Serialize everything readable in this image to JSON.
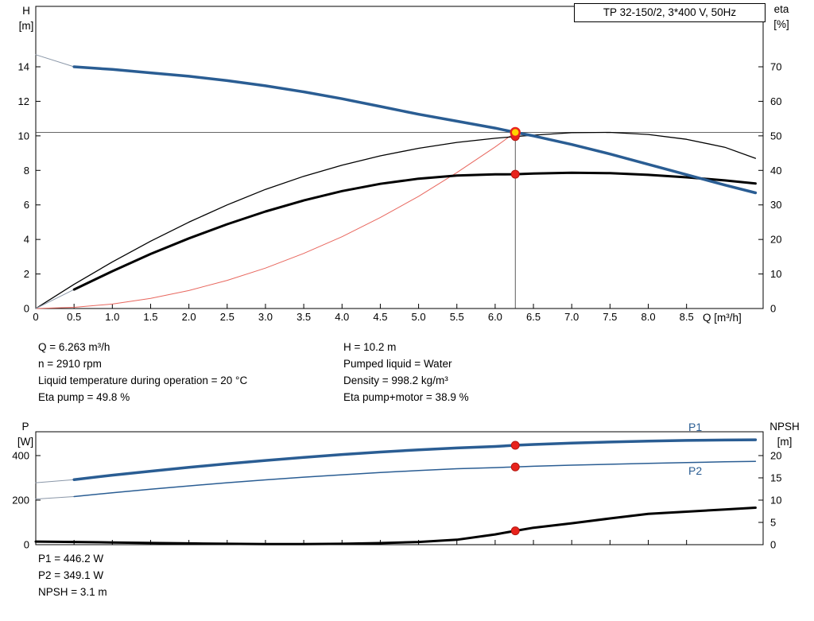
{
  "title_box": "TP 32-150/2, 3*400 V, 50Hz",
  "colors": {
    "curve_blue": "#2a5d93",
    "curve_black": "#000000",
    "system_red": "#e8675e",
    "marker_red": "#e8231c",
    "marker_yellow": "#ffd400",
    "lead_gray": "#8a97a8",
    "ref_line": "#333333"
  },
  "results": {
    "left": [
      "Q = 6.263 m³/h",
      "n = 2910 rpm",
      "Liquid temperature during operation = 20 °C",
      "Eta pump = 49.8 %"
    ],
    "right": [
      "H = 10.2 m",
      "Pumped liquid = Water",
      "Density = 998.2 kg/m³",
      "Eta pump+motor = 38.9 %"
    ],
    "bottom": [
      "P1 = 446.2 W",
      "P2 = 349.1 W",
      "NPSH = 3.1 m"
    ]
  },
  "chart_data": [
    {
      "type": "line",
      "name": "hq-eta-chart",
      "x_axis": {
        "label": "Q [m³/h]",
        "min": 0,
        "max": 9.5,
        "tick_values": [
          0,
          0.5,
          1,
          1.5,
          2,
          2.5,
          3,
          3.5,
          4,
          4.5,
          5,
          5.5,
          6,
          6.5,
          7,
          7.5,
          8,
          8.5
        ],
        "tick_labels": [
          "0",
          "0.5",
          "1.0",
          "1.5",
          "2.0",
          "2.5",
          "3.0",
          "3.5",
          "4.0",
          "4.5",
          "5.0",
          "5.5",
          "6.0",
          "6.5",
          "7.0",
          "7.5",
          "8.0",
          "8.5"
        ]
      },
      "y_left": {
        "label_top": "H",
        "label_unit": "[m]",
        "min": 0,
        "max": 17.5,
        "tick_values": [
          0,
          2,
          4,
          6,
          8,
          10,
          12,
          14
        ],
        "tick_labels": [
          "0",
          "2",
          "4",
          "6",
          "8",
          "10",
          "12",
          "14"
        ]
      },
      "y_right": {
        "label_top": "eta",
        "label_unit": "[%]",
        "min": 0,
        "max": 87.5,
        "tick_values": [
          0,
          10,
          20,
          30,
          40,
          50,
          60,
          70
        ],
        "tick_labels": [
          "0",
          "10",
          "20",
          "30",
          "40",
          "50",
          "60",
          "70"
        ]
      },
      "ref_lines": [
        {
          "type": "h",
          "y": 10.2,
          "axis": "left",
          "color": "#333333",
          "width": 0.8
        },
        {
          "type": "v",
          "x": 6.263,
          "y_top": 10.2,
          "axis": "left",
          "color": "#333333",
          "width": 0.8
        }
      ],
      "series": [
        {
          "name": "system-curve",
          "axis": "left",
          "color": "#e8675e",
          "width": 1,
          "points": [
            [
              0,
              0
            ],
            [
              0.5,
              0.07
            ],
            [
              1,
              0.26
            ],
            [
              1.5,
              0.59
            ],
            [
              2,
              1.04
            ],
            [
              2.5,
              1.63
            ],
            [
              3,
              2.34
            ],
            [
              3.5,
              3.19
            ],
            [
              4,
              4.16
            ],
            [
              4.5,
              5.27
            ],
            [
              5,
              6.5
            ],
            [
              5.5,
              7.87
            ],
            [
              6,
              9.36
            ],
            [
              6.263,
              10.2
            ]
          ]
        },
        {
          "name": "eta-pump-curve",
          "axis": "right",
          "color": "#000000",
          "width": 1.3,
          "points": [
            [
              0,
              0
            ],
            [
              0.5,
              7
            ],
            [
              1,
              13.5
            ],
            [
              1.5,
              19.5
            ],
            [
              2,
              25
            ],
            [
              2.5,
              30
            ],
            [
              3,
              34.5
            ],
            [
              3.5,
              38.3
            ],
            [
              4,
              41.5
            ],
            [
              4.5,
              44.2
            ],
            [
              5,
              46.4
            ],
            [
              5.5,
              48.1
            ],
            [
              6,
              49.3
            ],
            [
              6.263,
              49.8
            ],
            [
              6.5,
              50.2
            ],
            [
              7,
              50.9
            ],
            [
              7.5,
              51
            ],
            [
              8,
              50.4
            ],
            [
              8.5,
              49
            ],
            [
              9,
              46.7
            ],
            [
              9.4,
              43.5
            ]
          ]
        },
        {
          "name": "eta-pump-motor-leadin",
          "axis": "right",
          "color": "#8a97a8",
          "width": 1,
          "points": [
            [
              0,
              0
            ],
            [
              0.5,
              5.5
            ]
          ]
        },
        {
          "name": "eta-pump-motor-curve",
          "axis": "right",
          "color": "#000000",
          "width": 3,
          "points": [
            [
              0.5,
              5.5
            ],
            [
              1,
              10.8
            ],
            [
              1.5,
              15.8
            ],
            [
              2,
              20.3
            ],
            [
              2.5,
              24.4
            ],
            [
              3,
              28.1
            ],
            [
              3.5,
              31.3
            ],
            [
              4,
              34
            ],
            [
              4.5,
              36.1
            ],
            [
              5,
              37.6
            ],
            [
              5.5,
              38.5
            ],
            [
              6,
              38.85
            ],
            [
              6.263,
              38.9
            ],
            [
              6.5,
              39.1
            ],
            [
              7,
              39.3
            ],
            [
              7.5,
              39.2
            ],
            [
              8,
              38.7
            ],
            [
              8.5,
              38
            ],
            [
              9,
              37.1
            ],
            [
              9.4,
              36.2
            ]
          ]
        },
        {
          "name": "h-curve-leadin",
          "axis": "left",
          "color": "#8a97a8",
          "width": 1,
          "points": [
            [
              0,
              14.7
            ],
            [
              0.5,
              14
            ]
          ]
        },
        {
          "name": "h-curve",
          "axis": "left",
          "color": "#2a5d93",
          "width": 3.5,
          "points": [
            [
              0.5,
              14
            ],
            [
              1,
              13.85
            ],
            [
              1.5,
              13.65
            ],
            [
              2,
              13.45
            ],
            [
              2.5,
              13.2
            ],
            [
              3,
              12.9
            ],
            [
              3.5,
              12.55
            ],
            [
              4,
              12.15
            ],
            [
              4.5,
              11.7
            ],
            [
              5,
              11.25
            ],
            [
              5.5,
              10.85
            ],
            [
              6,
              10.45
            ],
            [
              6.263,
              10.2
            ],
            [
              6.5,
              10
            ],
            [
              7,
              9.5
            ],
            [
              7.5,
              8.95
            ],
            [
              8,
              8.35
            ],
            [
              8.5,
              7.75
            ],
            [
              9,
              7.15
            ],
            [
              9.4,
              6.7
            ]
          ]
        }
      ],
      "markers": [
        {
          "name": "duty-point-eta-pump",
          "x": 6.263,
          "y": 49.8,
          "axis": "right",
          "r": 5,
          "fill": "#e8231c",
          "stroke": "#b51812",
          "stroke_w": 1
        },
        {
          "name": "duty-point-eta-pump-motor",
          "x": 6.263,
          "y": 38.9,
          "axis": "right",
          "r": 5,
          "fill": "#e8231c",
          "stroke": "#b51812",
          "stroke_w": 1
        },
        {
          "name": "duty-point",
          "x": 6.263,
          "y": 10.2,
          "axis": "left",
          "r": 5.5,
          "fill": "#ffd400",
          "stroke": "#e8231c",
          "stroke_w": 2.5
        }
      ]
    },
    {
      "type": "line",
      "name": "power-npsh-chart",
      "x_axis": {
        "label": "",
        "min": 0,
        "max": 9.5,
        "tick_values": [
          0,
          0.5,
          1,
          1.5,
          2,
          2.5,
          3,
          3.5,
          4,
          4.5,
          5,
          5.5,
          6,
          6.5,
          7,
          7.5,
          8,
          8.5
        ],
        "tick_labels": []
      },
      "y_left": {
        "label_top": "P",
        "label_unit": "[W]",
        "min": 0,
        "max": 507,
        "tick_values": [
          0,
          200,
          400
        ],
        "tick_labels": [
          "0",
          "200",
          "400"
        ]
      },
      "y_right": {
        "label_top": "NPSH",
        "label_unit": "[m]",
        "min": 0,
        "max": 25.35,
        "tick_values": [
          0,
          5,
          10,
          15,
          20
        ],
        "tick_labels": [
          "0",
          "5",
          "10",
          "15",
          "20"
        ]
      },
      "ref_lines": [],
      "series_labels": [
        {
          "text": "P1"
        },
        {
          "text": "P2"
        }
      ],
      "series": [
        {
          "name": "p1-curve-leadin",
          "axis": "left",
          "color": "#8a97a8",
          "width": 1,
          "points": [
            [
              0,
              278
            ],
            [
              0.5,
              292
            ]
          ]
        },
        {
          "name": "p2-curve-leadin",
          "axis": "left",
          "color": "#8a97a8",
          "width": 1,
          "points": [
            [
              0,
              205
            ],
            [
              0.5,
              216
            ]
          ]
        },
        {
          "name": "npsh-curve",
          "axis": "right",
          "color": "#000000",
          "width": 3,
          "points": [
            [
              0,
              0.7
            ],
            [
              0.5,
              0.6
            ],
            [
              1,
              0.5
            ],
            [
              1.5,
              0.38
            ],
            [
              2,
              0.28
            ],
            [
              2.5,
              0.2
            ],
            [
              3,
              0.15
            ],
            [
              3.5,
              0.15
            ],
            [
              4,
              0.2
            ],
            [
              4.5,
              0.35
            ],
            [
              5,
              0.6
            ],
            [
              5.5,
              1.1
            ],
            [
              6,
              2.3
            ],
            [
              6.263,
              3.1
            ],
            [
              6.5,
              3.8
            ],
            [
              7,
              4.8
            ],
            [
              7.5,
              5.9
            ],
            [
              8,
              6.9
            ],
            [
              8.5,
              7.4
            ],
            [
              9,
              7.9
            ],
            [
              9.4,
              8.3
            ]
          ]
        },
        {
          "name": "p2-curve",
          "axis": "left",
          "color": "#2a5d93",
          "width": 1.5,
          "points": [
            [
              0.5,
              216
            ],
            [
              1,
              233
            ],
            [
              1.5,
              249
            ],
            [
              2,
              264
            ],
            [
              2.5,
              278
            ],
            [
              3,
              291
            ],
            [
              3.5,
              303
            ],
            [
              4,
              314
            ],
            [
              4.5,
              324
            ],
            [
              5,
              333
            ],
            [
              5.5,
              341
            ],
            [
              6,
              346
            ],
            [
              6.263,
              349.1
            ],
            [
              6.5,
              352
            ],
            [
              7,
              357
            ],
            [
              7.5,
              361
            ],
            [
              8,
              365
            ],
            [
              8.5,
              369
            ],
            [
              9,
              372
            ],
            [
              9.4,
              374
            ]
          ]
        },
        {
          "name": "p1-curve",
          "axis": "left",
          "color": "#2a5d93",
          "width": 3.5,
          "points": [
            [
              0.5,
              292
            ],
            [
              1,
              312
            ],
            [
              1.5,
              330
            ],
            [
              2,
              347
            ],
            [
              2.5,
              363
            ],
            [
              3,
              378
            ],
            [
              3.5,
              392
            ],
            [
              4,
              405
            ],
            [
              4.5,
              416
            ],
            [
              5,
              426
            ],
            [
              5.5,
              434
            ],
            [
              6,
              441
            ],
            [
              6.263,
              446.2
            ],
            [
              6.5,
              450
            ],
            [
              7,
              456
            ],
            [
              7.5,
              461
            ],
            [
              8,
              465
            ],
            [
              8.5,
              468
            ],
            [
              9,
              470
            ],
            [
              9.4,
              471
            ]
          ]
        }
      ],
      "markers": [
        {
          "name": "duty-point-p1",
          "x": 6.263,
          "y": 446.2,
          "axis": "left",
          "r": 5,
          "fill": "#e8231c",
          "stroke": "#b51812",
          "stroke_w": 1
        },
        {
          "name": "duty-point-p2",
          "x": 6.263,
          "y": 349.1,
          "axis": "left",
          "r": 5,
          "fill": "#e8231c",
          "stroke": "#b51812",
          "stroke_w": 1
        },
        {
          "name": "duty-point-npsh",
          "x": 6.263,
          "y": 3.1,
          "axis": "right",
          "r": 5,
          "fill": "#e8231c",
          "stroke": "#b51812",
          "stroke_w": 1
        }
      ]
    }
  ]
}
